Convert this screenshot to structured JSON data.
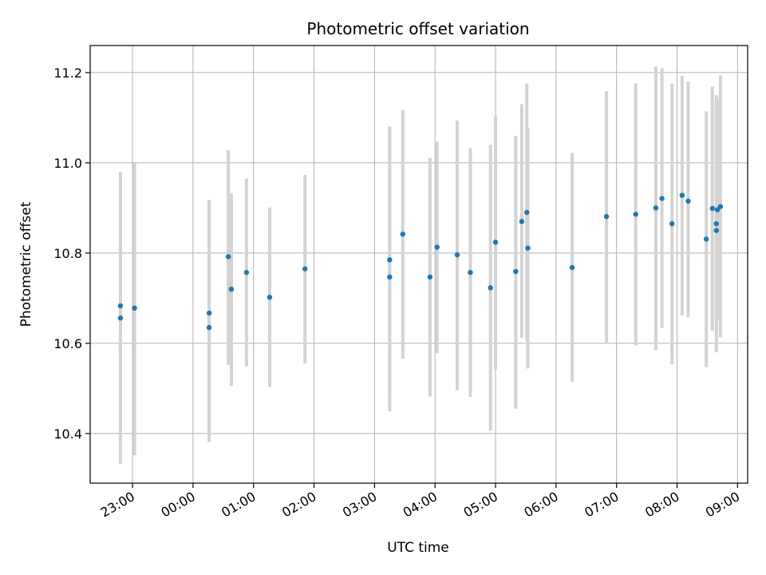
{
  "chart_data": {
    "type": "scatter",
    "title": "Photometric offset variation",
    "xlabel": "UTC time",
    "ylabel": "Photometric offset",
    "xlim": [
      "22:18",
      "09:10"
    ],
    "ylim": [
      10.29,
      11.26
    ],
    "x_ticks": [
      "23:00",
      "00:00",
      "01:00",
      "02:00",
      "03:00",
      "04:00",
      "05:00",
      "06:00",
      "07:00",
      "08:00",
      "09:00"
    ],
    "y_ticks": [
      "10.4",
      "10.6",
      "10.8",
      "11.0",
      "11.2"
    ],
    "grid": true,
    "legend": "none",
    "colors": {
      "points": "#1f77b4",
      "error_bars": "#d3d3d3",
      "grid": "#b0b0b0"
    },
    "points": [
      {
        "x": "22:48",
        "y": 10.683,
        "lo": 10.386,
        "hi": 10.98
      },
      {
        "x": "22:48",
        "y": 10.656,
        "lo": 10.332,
        "hi": 10.98
      },
      {
        "x": "23:02",
        "y": 10.678,
        "lo": 10.352,
        "hi": 11.0
      },
      {
        "x": "00:16",
        "y": 10.667,
        "lo": 10.414,
        "hi": 10.918
      },
      {
        "x": "00:16",
        "y": 10.635,
        "lo": 10.381,
        "hi": 10.918
      },
      {
        "x": "00:35",
        "y": 10.792,
        "lo": 10.552,
        "hi": 11.028
      },
      {
        "x": "00:38",
        "y": 10.72,
        "lo": 10.505,
        "hi": 10.933
      },
      {
        "x": "00:53",
        "y": 10.757,
        "lo": 10.549,
        "hi": 10.965
      },
      {
        "x": "01:16",
        "y": 10.702,
        "lo": 10.503,
        "hi": 10.901
      },
      {
        "x": "01:51",
        "y": 10.765,
        "lo": 10.555,
        "hi": 10.973
      },
      {
        "x": "03:15",
        "y": 10.785,
        "lo": 10.489,
        "hi": 11.08
      },
      {
        "x": "03:15",
        "y": 10.747,
        "lo": 10.449,
        "hi": 11.08
      },
      {
        "x": "03:28",
        "y": 10.842,
        "lo": 10.566,
        "hi": 11.117
      },
      {
        "x": "03:55",
        "y": 10.747,
        "lo": 10.482,
        "hi": 11.011
      },
      {
        "x": "04:02",
        "y": 10.813,
        "lo": 10.578,
        "hi": 11.047
      },
      {
        "x": "04:22",
        "y": 10.796,
        "lo": 10.496,
        "hi": 11.094
      },
      {
        "x": "04:35",
        "y": 10.757,
        "lo": 10.481,
        "hi": 11.033
      },
      {
        "x": "04:55",
        "y": 10.723,
        "lo": 10.406,
        "hi": 11.04
      },
      {
        "x": "05:00",
        "y": 10.824,
        "lo": 10.542,
        "hi": 11.105
      },
      {
        "x": "05:20",
        "y": 10.759,
        "lo": 10.455,
        "hi": 11.06
      },
      {
        "x": "05:26",
        "y": 10.87,
        "lo": 10.612,
        "hi": 11.13
      },
      {
        "x": "05:31",
        "y": 10.89,
        "lo": 10.605,
        "hi": 11.176
      },
      {
        "x": "05:32",
        "y": 10.811,
        "lo": 10.544,
        "hi": 11.076
      },
      {
        "x": "06:16",
        "y": 10.768,
        "lo": 10.515,
        "hi": 11.022
      },
      {
        "x": "06:50",
        "y": 10.881,
        "lo": 10.6,
        "hi": 11.159
      },
      {
        "x": "07:19",
        "y": 10.886,
        "lo": 10.595,
        "hi": 11.176
      },
      {
        "x": "07:39",
        "y": 10.9,
        "lo": 10.585,
        "hi": 11.213
      },
      {
        "x": "07:45",
        "y": 10.921,
        "lo": 10.634,
        "hi": 11.21
      },
      {
        "x": "07:55",
        "y": 10.865,
        "lo": 10.553,
        "hi": 11.176
      },
      {
        "x": "08:05",
        "y": 10.928,
        "lo": 10.662,
        "hi": 11.193
      },
      {
        "x": "08:11",
        "y": 10.915,
        "lo": 10.658,
        "hi": 11.18
      },
      {
        "x": "08:29",
        "y": 10.831,
        "lo": 10.547,
        "hi": 11.114
      },
      {
        "x": "08:35",
        "y": 10.899,
        "lo": 10.628,
        "hi": 11.169
      },
      {
        "x": "08:39",
        "y": 10.865,
        "lo": 10.58,
        "hi": 11.15
      },
      {
        "x": "08:39",
        "y": 10.85,
        "lo": 10.61,
        "hi": 11.143
      },
      {
        "x": "08:40",
        "y": 10.896,
        "lo": 10.65,
        "hi": 11.14
      },
      {
        "x": "08:43",
        "y": 10.903,
        "lo": 10.613,
        "hi": 11.194
      }
    ]
  }
}
